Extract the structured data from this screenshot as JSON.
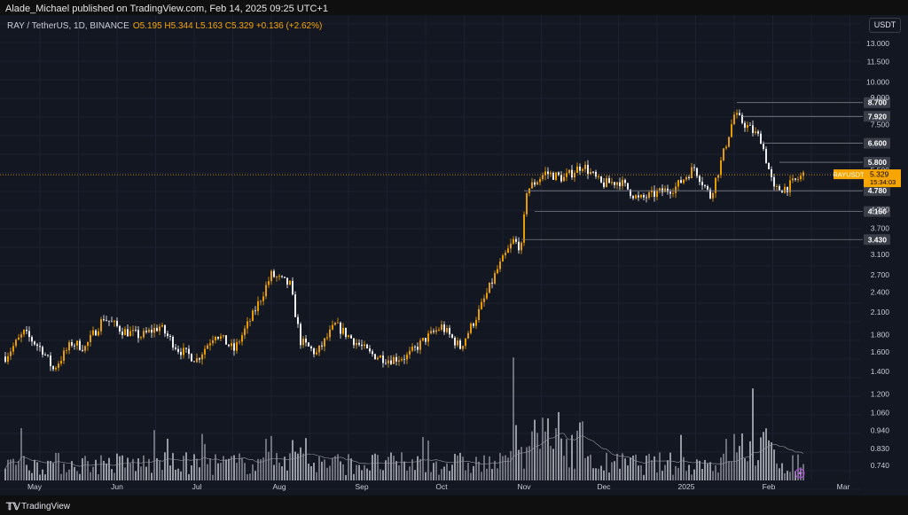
{
  "header": {
    "publisher": "Alade_Michael published on TradingView.com, Feb 14, 2025 09:25 UTC+1"
  },
  "symbol": {
    "name": "RAY / TetherUS, 1D, BINANCE",
    "ohlc": "O5.195 H5.344 L5.163 C5.329 +0.136 (+2.62%)"
  },
  "currency_button": "USDT",
  "colors": {
    "up": "#f7a600",
    "down": "#ffffff",
    "bg": "#131722",
    "level": "#787b86",
    "price": "#f7a600"
  },
  "chart_data": {
    "type": "candlestick",
    "yscale": "log",
    "ylim": [
      0.7,
      14.0
    ],
    "y_ticks": [
      "13.000",
      "11.500",
      "10.000",
      "9.000",
      "7.500",
      "5.500",
      "4.200",
      "3.700",
      "3.100",
      "2.700",
      "2.400",
      "2.100",
      "1.800",
      "1.600",
      "1.400",
      "1.200",
      "1.060",
      "0.940",
      "0.830",
      "0.740"
    ],
    "x_ticks": [
      "May",
      "Jun",
      "Jul",
      "Aug",
      "Sep",
      "Oct",
      "Nov",
      "Dec",
      "2025",
      "Feb",
      "Mar"
    ],
    "levels": [
      "8.700",
      "7.920",
      "6.600",
      "5.800",
      "4.780",
      "4.150",
      "3.430"
    ],
    "price_tag": {
      "symbol": "RAYUSDT",
      "price": "5.329",
      "countdown": "15:34:03"
    },
    "close_path": [
      {
        "date": "2024-04-20",
        "close": 1.55
      },
      {
        "date": "2024-04-27",
        "close": 1.82
      },
      {
        "date": "2024-05-04",
        "close": 1.62
      },
      {
        "date": "2024-05-08",
        "close": 1.42
      },
      {
        "date": "2024-05-15",
        "close": 1.7
      },
      {
        "date": "2024-05-20",
        "close": 1.65
      },
      {
        "date": "2024-05-27",
        "close": 2.02
      },
      {
        "date": "2024-06-03",
        "close": 1.85
      },
      {
        "date": "2024-06-10",
        "close": 1.78
      },
      {
        "date": "2024-06-17",
        "close": 1.9
      },
      {
        "date": "2024-06-24",
        "close": 1.63
      },
      {
        "date": "2024-07-01",
        "close": 1.52
      },
      {
        "date": "2024-07-08",
        "close": 1.82
      },
      {
        "date": "2024-07-15",
        "close": 1.62
      },
      {
        "date": "2024-07-22",
        "close": 2.05
      },
      {
        "date": "2024-07-29",
        "close": 2.7
      },
      {
        "date": "2024-08-05",
        "close": 2.52
      },
      {
        "date": "2024-08-09",
        "close": 1.72
      },
      {
        "date": "2024-08-15",
        "close": 1.58
      },
      {
        "date": "2024-08-22",
        "close": 1.92
      },
      {
        "date": "2024-08-29",
        "close": 1.73
      },
      {
        "date": "2024-09-04",
        "close": 1.58
      },
      {
        "date": "2024-09-11",
        "close": 1.52
      },
      {
        "date": "2024-09-18",
        "close": 1.55
      },
      {
        "date": "2024-09-25",
        "close": 1.75
      },
      {
        "date": "2024-10-01",
        "close": 1.9
      },
      {
        "date": "2024-10-08",
        "close": 1.65
      },
      {
        "date": "2024-10-15",
        "close": 2.1
      },
      {
        "date": "2024-10-22",
        "close": 2.8
      },
      {
        "date": "2024-10-28",
        "close": 3.4
      },
      {
        "date": "2024-10-31",
        "close": 3.25
      },
      {
        "date": "2024-11-02",
        "close": 4.8
      },
      {
        "date": "2024-11-09",
        "close": 5.4
      },
      {
        "date": "2024-11-16",
        "close": 5.2
      },
      {
        "date": "2024-11-23",
        "close": 5.7
      },
      {
        "date": "2024-11-30",
        "close": 5.0
      },
      {
        "date": "2024-12-07",
        "close": 5.1
      },
      {
        "date": "2024-12-14",
        "close": 4.5
      },
      {
        "date": "2024-12-21",
        "close": 4.7
      },
      {
        "date": "2024-12-28",
        "close": 4.9
      },
      {
        "date": "2025-01-04",
        "close": 5.6
      },
      {
        "date": "2025-01-10",
        "close": 4.6
      },
      {
        "date": "2025-01-14",
        "close": 5.8
      },
      {
        "date": "2025-01-19",
        "close": 8.0
      },
      {
        "date": "2025-01-24",
        "close": 7.4
      },
      {
        "date": "2025-01-29",
        "close": 6.8
      },
      {
        "date": "2025-02-03",
        "close": 4.8
      },
      {
        "date": "2025-02-08",
        "close": 4.9
      },
      {
        "date": "2025-02-14",
        "close": 5.33
      }
    ]
  },
  "footer": {
    "logo": "𝕋𝕍",
    "brand": "TradingView"
  }
}
